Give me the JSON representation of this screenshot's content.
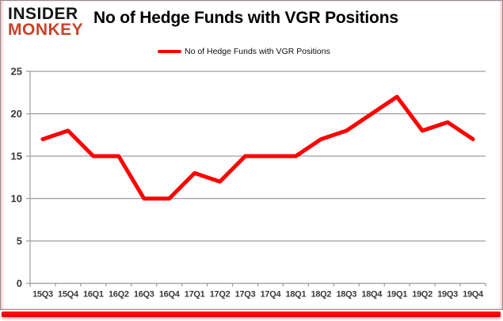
{
  "brand": {
    "name": "Insider Monkey",
    "line1": "INSIDER",
    "line2": "MONKEY",
    "line1_color": "#141414",
    "line2_color": "#c7432b"
  },
  "header": {
    "title": "No of Hedge Funds with VGR Positions"
  },
  "legend": {
    "label": "No of Hedge Funds with VGR Positions",
    "swatch_color": "#fe0000"
  },
  "chart_data": {
    "type": "line",
    "title": "No of Hedge Funds with VGR Positions",
    "categories": [
      "15Q3",
      "15Q4",
      "16Q1",
      "16Q2",
      "16Q3",
      "16Q4",
      "17Q1",
      "17Q2",
      "17Q3",
      "17Q4",
      "18Q1",
      "18Q2",
      "18Q3",
      "18Q4",
      "19Q1",
      "19Q2",
      "19Q3",
      "19Q4"
    ],
    "series": [
      {
        "name": "No of Hedge Funds with VGR Positions",
        "color": "#fe0000",
        "values": [
          17,
          18,
          15,
          15,
          10,
          10,
          13,
          12,
          15,
          15,
          15,
          17,
          18,
          20,
          22,
          18,
          19,
          17
        ]
      }
    ],
    "xlabel": "",
    "ylabel": "",
    "ylim": [
      0,
      25
    ],
    "yticks": [
      0,
      5,
      10,
      15,
      20,
      25
    ],
    "grid": true,
    "gridline_color": "#9d9d9d",
    "axis_color": "#9d9d9d",
    "tick_label_color": "#3a3a3a",
    "legend_position": "top",
    "line_width": 5
  },
  "frame": {
    "border_color": "#8e8e8e",
    "bottom_bar_color": "#f20000"
  }
}
